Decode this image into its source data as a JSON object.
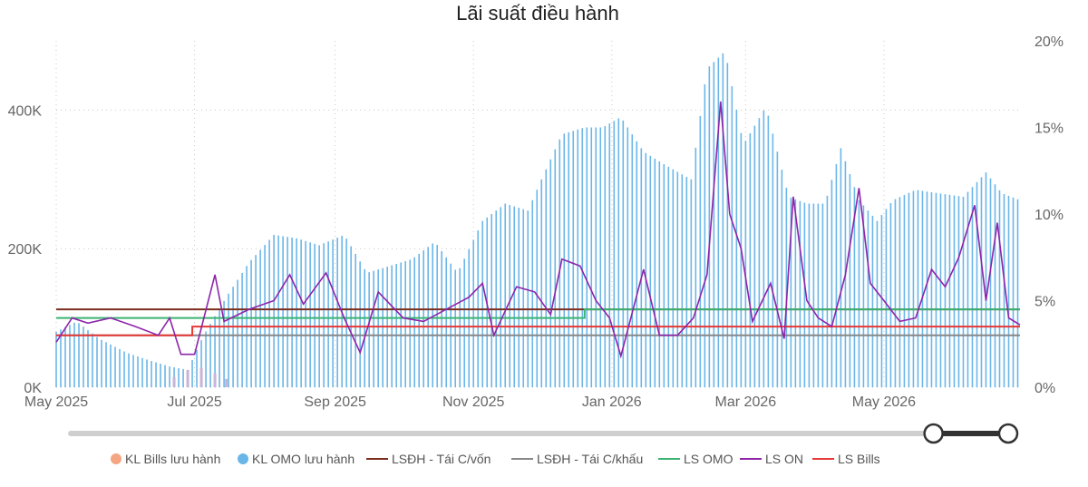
{
  "chart_data": {
    "type": "bar+line",
    "title": "Lãi suất điều hành",
    "x_ticks": [
      "May 2025",
      "Jul 2025",
      "Sep 2025",
      "Nov 2025",
      "Jan 2026",
      "Mar 2026",
      "May 2026"
    ],
    "y_left": {
      "ticks": [
        "0K",
        "200K",
        "400K"
      ],
      "values": [
        0,
        200000,
        400000
      ],
      "range": [
        0,
        500000
      ]
    },
    "y_right": {
      "ticks": [
        "0%",
        "5%",
        "10%",
        "15%",
        "20%"
      ],
      "values": [
        0,
        5,
        10,
        15,
        20
      ],
      "range": [
        0,
        20
      ]
    },
    "x_range": [
      "2025-05-01",
      "2026-06-30"
    ],
    "grid": "dotted",
    "legend_position": "bottom",
    "legend": [
      {
        "label": "KL Bills lưu hành",
        "marker": "dot",
        "color": "#f4a582"
      },
      {
        "label": "KL OMO lưu hành",
        "marker": "dot",
        "color": "#6bb6e8"
      },
      {
        "label": "LSĐH - Tái C/vốn",
        "marker": "line",
        "color": "#7b2d1e"
      },
      {
        "label": "LSĐH - Tái C/khấu",
        "marker": "line",
        "color": "#888888"
      },
      {
        "label": "LS OMO",
        "marker": "line",
        "color": "#3cb371"
      },
      {
        "label": "LS ON",
        "marker": "line",
        "color": "#8e24aa"
      },
      {
        "label": "LS Bills",
        "marker": "line",
        "color": "#e53935"
      }
    ],
    "bars_omo": {
      "name": "KL OMO lưu hành",
      "axis": "left",
      "points": [
        [
          "2025-05-01",
          80000
        ],
        [
          "2025-05-10",
          95000
        ],
        [
          "2025-05-20",
          70000
        ],
        [
          "2025-06-01",
          50000
        ],
        [
          "2025-06-10",
          40000
        ],
        [
          "2025-06-20",
          30000
        ],
        [
          "2025-06-28",
          25000
        ],
        [
          "2025-07-05",
          75000
        ],
        [
          "2025-07-15",
          130000
        ],
        [
          "2025-07-25",
          180000
        ],
        [
          "2025-08-05",
          220000
        ],
        [
          "2025-08-15",
          215000
        ],
        [
          "2025-08-25",
          205000
        ],
        [
          "2025-09-05",
          220000
        ],
        [
          "2025-09-15",
          165000
        ],
        [
          "2025-09-25",
          175000
        ],
        [
          "2025-10-05",
          185000
        ],
        [
          "2025-10-15",
          210000
        ],
        [
          "2025-10-25",
          165000
        ],
        [
          "2025-11-05",
          240000
        ],
        [
          "2025-11-15",
          265000
        ],
        [
          "2025-11-25",
          255000
        ],
        [
          "2025-12-01",
          300000
        ],
        [
          "2025-12-10",
          365000
        ],
        [
          "2025-12-20",
          375000
        ],
        [
          "2025-12-28",
          375000
        ],
        [
          "2026-01-05",
          390000
        ],
        [
          "2026-01-15",
          340000
        ],
        [
          "2026-01-25",
          320000
        ],
        [
          "2026-02-05",
          300000
        ],
        [
          "2026-02-12",
          460000
        ],
        [
          "2026-02-20",
          485000
        ],
        [
          "2026-02-28",
          350000
        ],
        [
          "2026-03-10",
          405000
        ],
        [
          "2026-03-20",
          275000
        ],
        [
          "2026-03-28",
          265000
        ],
        [
          "2026-04-05",
          265000
        ],
        [
          "2026-04-12",
          345000
        ],
        [
          "2026-04-20",
          270000
        ],
        [
          "2026-04-28",
          240000
        ],
        [
          "2026-05-05",
          270000
        ],
        [
          "2026-05-15",
          285000
        ],
        [
          "2026-05-25",
          280000
        ],
        [
          "2026-06-05",
          275000
        ],
        [
          "2026-06-15",
          310000
        ],
        [
          "2026-06-22",
          280000
        ],
        [
          "2026-06-30",
          270000
        ]
      ]
    },
    "bars_bills": {
      "name": "KL Bills lưu hành",
      "axis": "left",
      "points": [
        [
          "2025-06-22",
          15000
        ],
        [
          "2025-06-28",
          25000
        ],
        [
          "2025-07-04",
          28000
        ],
        [
          "2025-07-10",
          20000
        ],
        [
          "2025-07-15",
          12000
        ]
      ]
    },
    "lines": [
      {
        "name": "LSĐH - Tái C/vốn",
        "axis": "right",
        "color": "#7b2d1e",
        "points": [
          [
            "2025-05-01",
            4.5
          ],
          [
            "2026-06-30",
            4.5
          ]
        ]
      },
      {
        "name": "LSĐH - Tái C/khấu",
        "axis": "right",
        "color": "#888888",
        "points": [
          [
            "2025-05-01",
            3.0
          ],
          [
            "2026-06-30",
            3.0
          ]
        ]
      },
      {
        "name": "LS OMO",
        "axis": "right",
        "color": "#3cb371",
        "points": [
          [
            "2025-05-01",
            4.0
          ],
          [
            "2025-12-20",
            4.0
          ],
          [
            "2025-12-20",
            4.5
          ],
          [
            "2026-06-30",
            4.5
          ]
        ]
      },
      {
        "name": "LS Bills",
        "axis": "right",
        "color": "#e53935",
        "points": [
          [
            "2025-05-01",
            3.0
          ],
          [
            "2025-06-30",
            3.0
          ],
          [
            "2025-06-30",
            3.5
          ],
          [
            "2026-06-30",
            3.5
          ]
        ]
      },
      {
        "name": "LS ON",
        "axis": "right",
        "color": "#8e24aa",
        "points": [
          [
            "2025-05-01",
            2.6
          ],
          [
            "2025-05-08",
            4.0
          ],
          [
            "2025-05-15",
            3.7
          ],
          [
            "2025-05-25",
            4.0
          ],
          [
            "2025-06-05",
            3.5
          ],
          [
            "2025-06-15",
            3.0
          ],
          [
            "2025-06-20",
            4.0
          ],
          [
            "2025-06-25",
            1.9
          ],
          [
            "2025-07-01",
            1.9
          ],
          [
            "2025-07-10",
            6.5
          ],
          [
            "2025-07-14",
            3.8
          ],
          [
            "2025-07-25",
            4.5
          ],
          [
            "2025-08-05",
            5.0
          ],
          [
            "2025-08-12",
            6.5
          ],
          [
            "2025-08-18",
            4.8
          ],
          [
            "2025-08-28",
            6.6
          ],
          [
            "2025-09-05",
            4.0
          ],
          [
            "2025-09-12",
            2.0
          ],
          [
            "2025-09-20",
            5.5
          ],
          [
            "2025-10-01",
            4.0
          ],
          [
            "2025-10-10",
            3.8
          ],
          [
            "2025-10-20",
            4.5
          ],
          [
            "2025-10-30",
            5.2
          ],
          [
            "2025-11-05",
            6.0
          ],
          [
            "2025-11-10",
            3.0
          ],
          [
            "2025-11-20",
            5.8
          ],
          [
            "2025-11-28",
            5.5
          ],
          [
            "2025-12-05",
            4.2
          ],
          [
            "2025-12-10",
            7.4
          ],
          [
            "2025-12-18",
            7.0
          ],
          [
            "2025-12-25",
            5.0
          ],
          [
            "2025-12-31",
            4.0
          ],
          [
            "2026-01-05",
            1.8
          ],
          [
            "2026-01-15",
            6.8
          ],
          [
            "2026-01-22",
            3.0
          ],
          [
            "2026-01-30",
            3.0
          ],
          [
            "2026-02-06",
            4.0
          ],
          [
            "2026-02-12",
            6.5
          ],
          [
            "2026-02-18",
            16.5
          ],
          [
            "2026-02-22",
            10.0
          ],
          [
            "2026-02-27",
            8.0
          ],
          [
            "2026-03-04",
            3.8
          ],
          [
            "2026-03-12",
            6.0
          ],
          [
            "2026-03-18",
            2.8
          ],
          [
            "2026-03-22",
            11.0
          ],
          [
            "2026-03-28",
            5.0
          ],
          [
            "2026-04-02",
            4.0
          ],
          [
            "2026-04-08",
            3.5
          ],
          [
            "2026-04-14",
            6.5
          ],
          [
            "2026-04-20",
            11.5
          ],
          [
            "2026-04-25",
            6.0
          ],
          [
            "2026-05-01",
            5.0
          ],
          [
            "2026-05-08",
            3.8
          ],
          [
            "2026-05-15",
            4.0
          ],
          [
            "2026-05-22",
            6.8
          ],
          [
            "2026-05-28",
            5.8
          ],
          [
            "2026-06-03",
            7.5
          ],
          [
            "2026-06-10",
            10.5
          ],
          [
            "2026-06-15",
            5.0
          ],
          [
            "2026-06-20",
            9.5
          ],
          [
            "2026-06-25",
            4.0
          ],
          [
            "2026-06-30",
            3.6
          ]
        ]
      }
    ],
    "range_slider": {
      "start": 0.93,
      "end": 1.0
    }
  }
}
